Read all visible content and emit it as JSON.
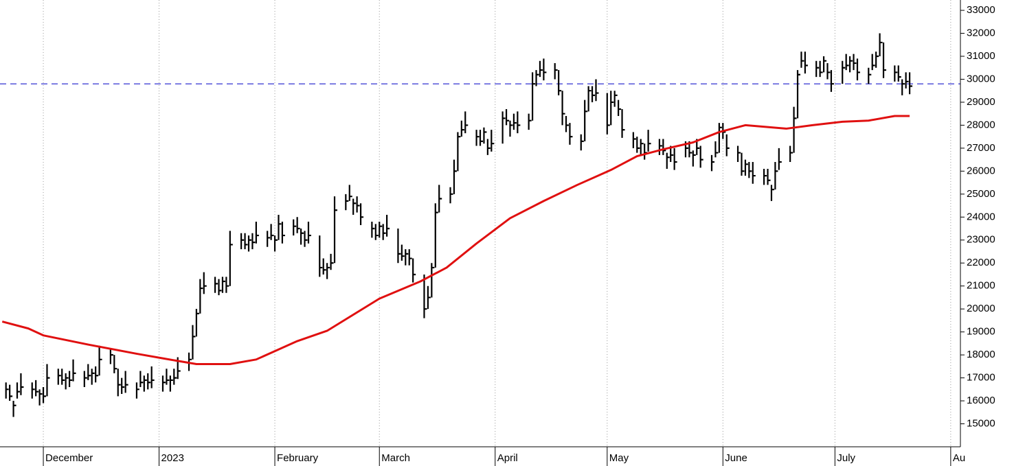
{
  "chart_data": {
    "type": "ohlc",
    "xlim": [
      -11.6,
      245.6
    ],
    "ylim": [
      14000,
      33450
    ],
    "xticks": [
      {
        "value": 0,
        "label": "December"
      },
      {
        "value": 31,
        "label": "2023"
      },
      {
        "value": 62,
        "label": "February"
      },
      {
        "value": 90,
        "label": "March"
      },
      {
        "value": 121,
        "label": "April"
      },
      {
        "value": 151,
        "label": "May"
      },
      {
        "value": 182,
        "label": "June"
      },
      {
        "value": 212,
        "label": "July"
      },
      {
        "value": 243,
        "label": "Au"
      }
    ],
    "yticks": [
      15000,
      16000,
      17000,
      18000,
      19000,
      20000,
      21000,
      22000,
      23000,
      24000,
      25000,
      26000,
      27000,
      28000,
      29000,
      30000,
      31000,
      32000,
      33000
    ],
    "grid": "x",
    "price": {
      "color": "#000000",
      "x": [
        -10,
        -9,
        -8,
        -7,
        -6,
        -3,
        -2,
        -1,
        0,
        1,
        4,
        5,
        6,
        7,
        8,
        11,
        12,
        13,
        14,
        15,
        18,
        19,
        20,
        21,
        22,
        25,
        26,
        27,
        28,
        29,
        32,
        33,
        34,
        35,
        36,
        39,
        40,
        41,
        42,
        43,
        46,
        47,
        48,
        49,
        50,
        53,
        54,
        55,
        56,
        57,
        60,
        61,
        62,
        63,
        64,
        67,
        68,
        69,
        70,
        71,
        74,
        75,
        76,
        77,
        78,
        81,
        82,
        83,
        84,
        85,
        88,
        89,
        90,
        91,
        92,
        95,
        96,
        97,
        98,
        99,
        102,
        103,
        104,
        105,
        106,
        109,
        110,
        111,
        112,
        113,
        116,
        117,
        118,
        119,
        120,
        123,
        124,
        125,
        126,
        127,
        130,
        131,
        132,
        133,
        134,
        137,
        138,
        139,
        140,
        141,
        144,
        145,
        146,
        147,
        148,
        151,
        152,
        153,
        154,
        155,
        158,
        159,
        160,
        161,
        162,
        165,
        166,
        167,
        168,
        169,
        172,
        173,
        174,
        175,
        176,
        179,
        180,
        181,
        182,
        183,
        186,
        187,
        188,
        189,
        190,
        193,
        194,
        195,
        196,
        197,
        200,
        201,
        202,
        203,
        204,
        207,
        208,
        209,
        210,
        211,
        214,
        215,
        216,
        217,
        218,
        221,
        222,
        223,
        224,
        225,
        228,
        229,
        230,
        231,
        232
      ],
      "high": [
        16800,
        16700,
        16000,
        16800,
        17200,
        16800,
        16900,
        16500,
        16600,
        17600,
        17400,
        17400,
        17200,
        17300,
        17800,
        17300,
        17600,
        17400,
        17500,
        18400,
        18300,
        18000,
        17400,
        17000,
        17300,
        16800,
        17300,
        17100,
        17200,
        17500,
        17100,
        17400,
        17100,
        17400,
        17900,
        18100,
        19300,
        20000,
        21300,
        21600,
        21400,
        21300,
        21400,
        21400,
        23400,
        23300,
        23300,
        23200,
        23300,
        23800,
        23400,
        23700,
        23200,
        24100,
        23800,
        23900,
        24000,
        23500,
        23400,
        23800,
        23200,
        22200,
        22000,
        22400,
        24900,
        25000,
        25400,
        24800,
        24900,
        24600,
        23800,
        23700,
        23800,
        23700,
        24100,
        23500,
        22800,
        22600,
        22600,
        22200,
        21500,
        21000,
        22000,
        24600,
        25400,
        25300,
        26500,
        27700,
        28200,
        28600,
        27800,
        27800,
        27900,
        27400,
        27800,
        28600,
        28700,
        28200,
        28500,
        28600,
        28500,
        30300,
        30400,
        30800,
        30900,
        30700,
        30400,
        29500,
        28400,
        28100,
        27600,
        29100,
        29700,
        29700,
        30000,
        29400,
        29500,
        29500,
        29100,
        28700,
        27700,
        27500,
        27400,
        27200,
        27800,
        27400,
        27400,
        26800,
        27100,
        27000,
        27300,
        27300,
        26900,
        27400,
        27100,
        26700,
        27300,
        28100,
        28100,
        27600,
        27100,
        26800,
        26500,
        26400,
        26400,
        26100,
        26100,
        25400,
        26400,
        27000,
        27100,
        28800,
        30400,
        31200,
        31200,
        30800,
        30800,
        31000,
        30700,
        30400,
        30800,
        31100,
        31000,
        31100,
        30900,
        30500,
        31100,
        31200,
        32000,
        31600,
        30600,
        30600,
        30000,
        30300,
        30300
      ],
      "low": [
        16100,
        16000,
        15300,
        16100,
        16250,
        16100,
        16200,
        15800,
        15900,
        16200,
        16700,
        16700,
        16500,
        16600,
        16850,
        16600,
        16900,
        16700,
        16800,
        17100,
        17600,
        17200,
        16200,
        16300,
        16350,
        16100,
        16600,
        16400,
        16500,
        16550,
        16400,
        16700,
        16400,
        16700,
        16950,
        17300,
        17800,
        18800,
        19800,
        20650,
        20700,
        20600,
        20700,
        20700,
        21000,
        22600,
        22600,
        22500,
        22600,
        22850,
        22700,
        23000,
        22500,
        23000,
        22850,
        23200,
        23300,
        22800,
        22700,
        22850,
        21400,
        21500,
        21300,
        21700,
        22000,
        24300,
        24700,
        24100,
        24200,
        23650,
        23100,
        23000,
        23100,
        23000,
        23150,
        22000,
        22100,
        21900,
        21900,
        21150,
        19600,
        20000,
        20500,
        21800,
        24200,
        24600,
        25000,
        26000,
        27500,
        27650,
        27100,
        27100,
        27200,
        26700,
        26850,
        27200,
        28000,
        27500,
        27800,
        27650,
        27800,
        28200,
        29700,
        30100,
        29950,
        30000,
        29300,
        28000,
        27700,
        27150,
        26900,
        27300,
        28600,
        29000,
        29050,
        27600,
        28000,
        28800,
        28400,
        27450,
        27000,
        26800,
        26700,
        26500,
        26850,
        26700,
        26700,
        26100,
        26400,
        26050,
        26600,
        26600,
        26200,
        26700,
        26150,
        26000,
        26600,
        26800,
        27400,
        26650,
        26400,
        25800,
        25800,
        25700,
        25450,
        25400,
        25400,
        24700,
        25200,
        26050,
        26400,
        26800,
        28300,
        30500,
        30250,
        30100,
        30100,
        30300,
        30000,
        29450,
        29800,
        30400,
        30300,
        30400,
        29950,
        29800,
        30400,
        30500,
        31000,
        30050,
        29900,
        29900,
        29300,
        29600,
        29350
      ],
      "close": [
        16500,
        16200,
        15800,
        16400,
        16600,
        16500,
        16400,
        16300,
        16200,
        17000,
        17100,
        16900,
        17000,
        16900,
        17200,
        17000,
        17100,
        17200,
        17100,
        17800,
        18000,
        17400,
        16700,
        16600,
        16700,
        16500,
        16800,
        16900,
        16800,
        16900,
        16800,
        16900,
        16900,
        17000,
        17300,
        17800,
        18800,
        19800,
        20900,
        21000,
        21100,
        20800,
        21200,
        21000,
        22800,
        23000,
        22800,
        23000,
        22900,
        23200,
        23100,
        23200,
        23000,
        23700,
        23200,
        23600,
        23500,
        23300,
        23000,
        23200,
        21800,
        21700,
        21800,
        22000,
        24300,
        24700,
        24900,
        24600,
        24500,
        24000,
        23500,
        23200,
        23600,
        23300,
        23500,
        22400,
        22300,
        22400,
        22200,
        21500,
        20000,
        20500,
        21800,
        24200,
        24800,
        25000,
        26000,
        27500,
        27800,
        28000,
        27500,
        27300,
        27700,
        27000,
        27200,
        28300,
        28200,
        28000,
        28100,
        28000,
        28200,
        29800,
        30200,
        30400,
        30300,
        30400,
        29500,
        28500,
        28000,
        27500,
        27300,
        28600,
        29500,
        29300,
        29400,
        28000,
        29000,
        29300,
        28700,
        27800,
        27400,
        27000,
        27200,
        26800,
        27200,
        27100,
        26900,
        26600,
        26700,
        26400,
        27000,
        26800,
        26700,
        27000,
        26500,
        26400,
        26800,
        27900,
        27700,
        27000,
        26800,
        26000,
        26300,
        26000,
        25800,
        25800,
        25600,
        25200,
        26000,
        26400,
        26800,
        28300,
        30200,
        30800,
        30600,
        30500,
        30300,
        30800,
        30300,
        29800,
        30500,
        30600,
        30800,
        30700,
        30300,
        30200,
        30600,
        31000,
        31600,
        30400,
        30300,
        30100,
        29800,
        29900,
        29700
      ]
    },
    "moving_average": {
      "color": "#e01010",
      "x": [
        -11,
        -4,
        0,
        12,
        25,
        32,
        41,
        50,
        57,
        68,
        76,
        81,
        90,
        101,
        108,
        116,
        125,
        134,
        143,
        152,
        159,
        166,
        174,
        181,
        188,
        199,
        206,
        214,
        221,
        228,
        232
      ],
      "values": [
        19450,
        19150,
        18850,
        18450,
        18050,
        17850,
        17600,
        17600,
        17800,
        18600,
        19050,
        19550,
        20450,
        21200,
        21800,
        22850,
        23950,
        24700,
        25400,
        26050,
        26650,
        26950,
        27250,
        27700,
        28000,
        27850,
        28000,
        28150,
        28200,
        28400,
        28400
      ]
    },
    "reference_line": {
      "value": 29800,
      "color": "#1a1acc"
    }
  }
}
